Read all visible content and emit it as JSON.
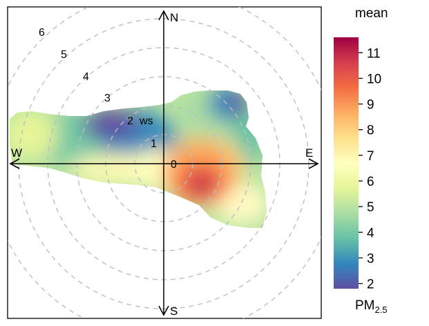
{
  "chart_data": {
    "type": "heatmap",
    "subtype": "polar-plot",
    "legend_title": "mean",
    "legend_subtitle": {
      "base": "PM",
      "sub": "2.5"
    },
    "colorbar_ticks": [
      2,
      3,
      4,
      5,
      6,
      7,
      8,
      9,
      10,
      11
    ],
    "colorbar_range": [
      1.8,
      11.6
    ],
    "palette": [
      "#5e4fa2",
      "#3288bd",
      "#66c2a5",
      "#abdda4",
      "#e6f598",
      "#ffffbf",
      "#fee08b",
      "#fdae61",
      "#f46d43",
      "#d53e4f",
      "#9e0142"
    ],
    "directions": [
      "N",
      "E",
      "S",
      "W"
    ],
    "radial_ticks": [
      "0",
      "1",
      "2",
      "3",
      "4",
      "5",
      "6"
    ],
    "radial_label": "ws",
    "radial_max": 6,
    "grid": true,
    "legend_position": "right",
    "hotspots": [
      {
        "bearing": 120,
        "ws": 1.5,
        "mean": 11.0
      },
      {
        "bearing": 95,
        "ws": 2.8,
        "mean": 7.5
      },
      {
        "bearing": 60,
        "ws": 2.5,
        "mean": 4.0
      },
      {
        "bearing": 45,
        "ws": 3.5,
        "mean": 2.5
      },
      {
        "bearing": 290,
        "ws": 2.5,
        "mean": 2.3
      },
      {
        "bearing": 275,
        "ws": 5.5,
        "mean": 4.5
      },
      {
        "bearing": 260,
        "ws": 1.5,
        "mean": 7.0
      }
    ]
  }
}
